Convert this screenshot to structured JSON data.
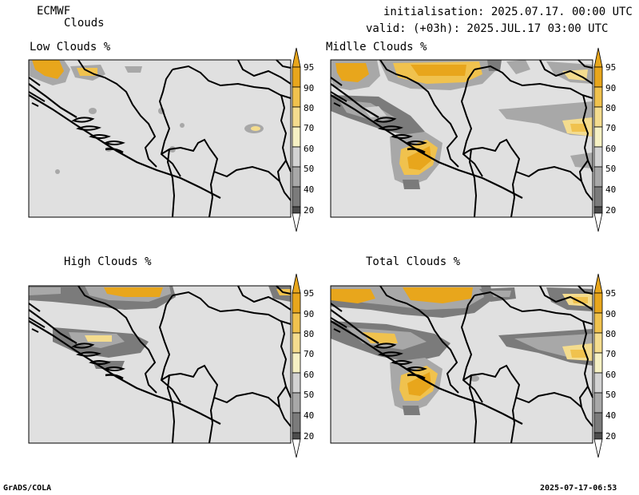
{
  "header": {
    "model": "ECMWF",
    "product": "Clouds",
    "init": "initialisation: 2025.07.17. 00:00 UTC",
    "valid": "valid: (+03h): 2025.JUL.17 03:00 UTC"
  },
  "panels": [
    {
      "title": "Low Clouds %"
    },
    {
      "title": "Midlle Clouds %"
    },
    {
      "title": "High Clouds %"
    },
    {
      "title": "Total Clouds %"
    }
  ],
  "legend": {
    "labels": [
      "95",
      "90",
      "80",
      "70",
      "60",
      "50",
      "40",
      "20"
    ],
    "colors": [
      "#e8a61c",
      "#f0c24e",
      "#f4dc8e",
      "#f6f1c4",
      "#d3d3d3",
      "#a8a8a8",
      "#7b7b7b",
      "#4d4d4d"
    ]
  },
  "footer": {
    "left": "GrADS/COLA",
    "right": "2025-07-17-06:53"
  }
}
